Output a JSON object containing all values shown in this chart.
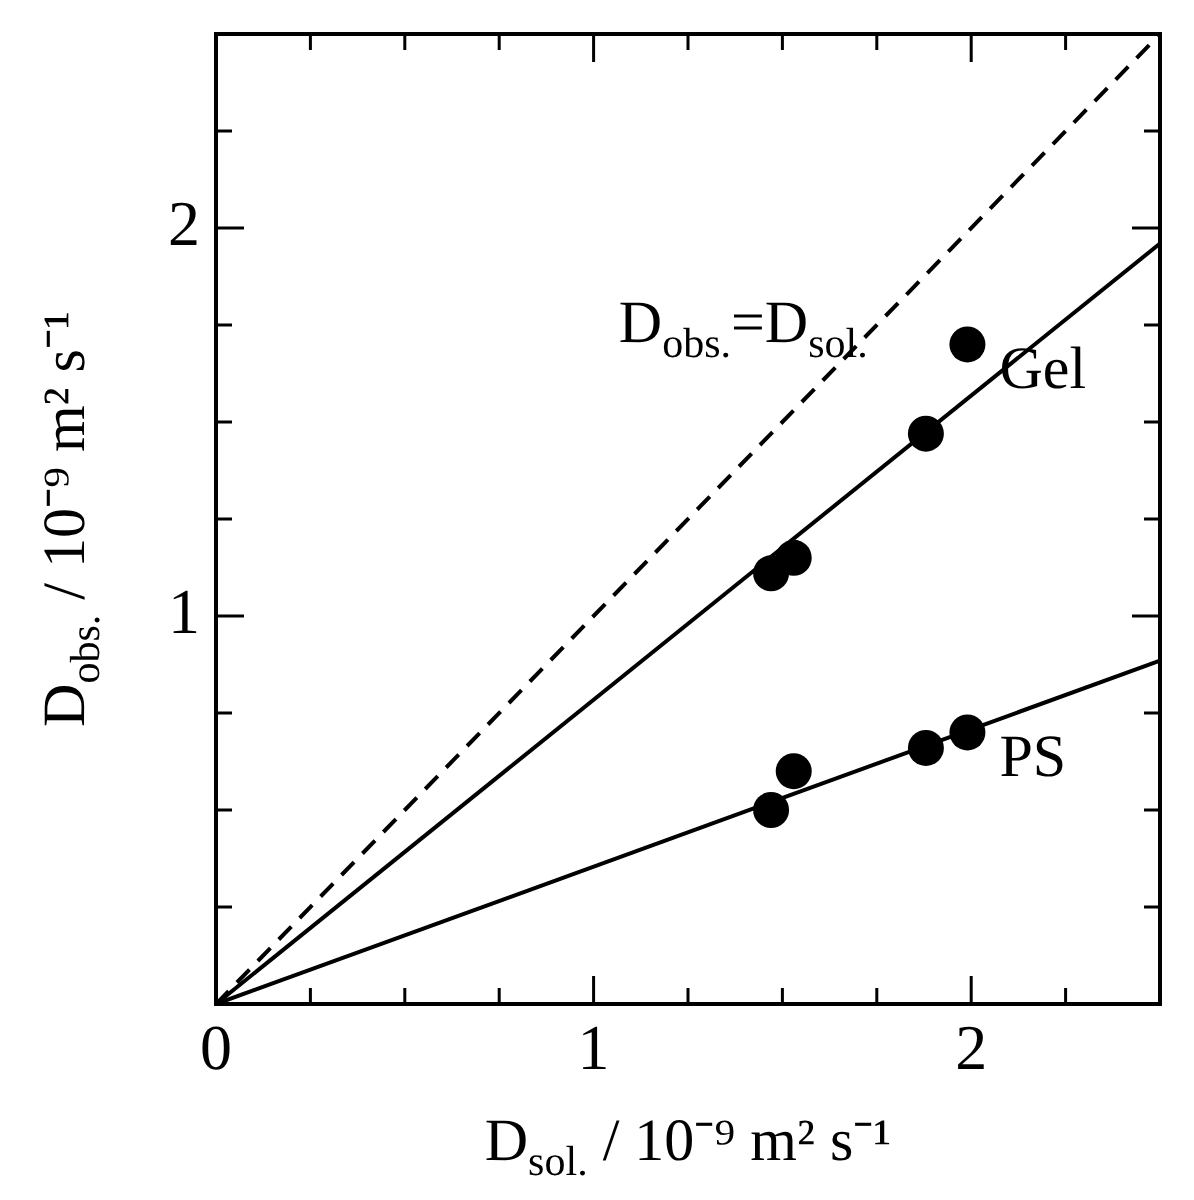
{
  "chart_data": {
    "type": "scatter",
    "xlabel": "D$_{sol.}$ / 10⁻⁹ m² s⁻¹",
    "ylabel": "D$_{obs.}$ / 10⁻⁹ m² s⁻¹",
    "xlim": [
      0,
      2.5
    ],
    "ylim": [
      0,
      2.5
    ],
    "xticks": [
      0,
      {
        "value": 0.25,
        "label": null
      },
      {
        "value": 0.5,
        "label": null
      },
      {
        "value": 0.75,
        "label": null
      },
      1,
      {
        "value": 1.25,
        "label": null
      },
      {
        "value": 1.5,
        "label": null
      },
      {
        "value": 1.75,
        "label": null
      },
      2,
      {
        "value": 2.25,
        "label": null
      },
      {
        "value": 2.5,
        "label": null
      }
    ],
    "yticks": [
      {
        "value": 0,
        "label": null
      },
      {
        "value": 0.25,
        "label": null
      },
      {
        "value": 0.5,
        "label": null
      },
      {
        "value": 0.75,
        "label": null
      },
      1,
      {
        "value": 1.25,
        "label": null
      },
      {
        "value": 1.5,
        "label": null
      },
      {
        "value": 1.75,
        "label": null
      },
      2,
      {
        "value": 2.25,
        "label": null
      },
      {
        "value": 2.5,
        "label": null
      }
    ],
    "grid": false,
    "legend": false,
    "series": [
      {
        "type": "line",
        "name": "D$_{obs.}$=D$_{sol.}$",
        "color": "#000000",
        "line_style": "dashed",
        "marker": "none",
        "x": [
          0,
          2.5
        ],
        "values": [
          0,
          2.5
        ]
      },
      {
        "type": "line",
        "color": "#000000",
        "line_style": "solid",
        "marker": "none",
        "x": [
          0,
          2.5
        ],
        "values": [
          0,
          1.96
        ]
      },
      {
        "type": "scatter",
        "name": "Gel",
        "color": "#000000",
        "marker": "circle",
        "x": [
          1.47,
          1.53,
          1.88,
          1.99
        ],
        "values": [
          1.11,
          1.15,
          1.47,
          1.7
        ]
      },
      {
        "type": "line",
        "color": "#000000",
        "line_style": "solid",
        "marker": "none",
        "x": [
          0,
          2.5
        ],
        "values": [
          0,
          0.885
        ]
      },
      {
        "type": "scatter",
        "name": "PS",
        "color": "#000000",
        "marker": "circle",
        "x": [
          1.47,
          1.53,
          1.88,
          1.99
        ],
        "values": [
          0.5,
          0.6,
          0.66,
          0.7
        ]
      }
    ]
  }
}
